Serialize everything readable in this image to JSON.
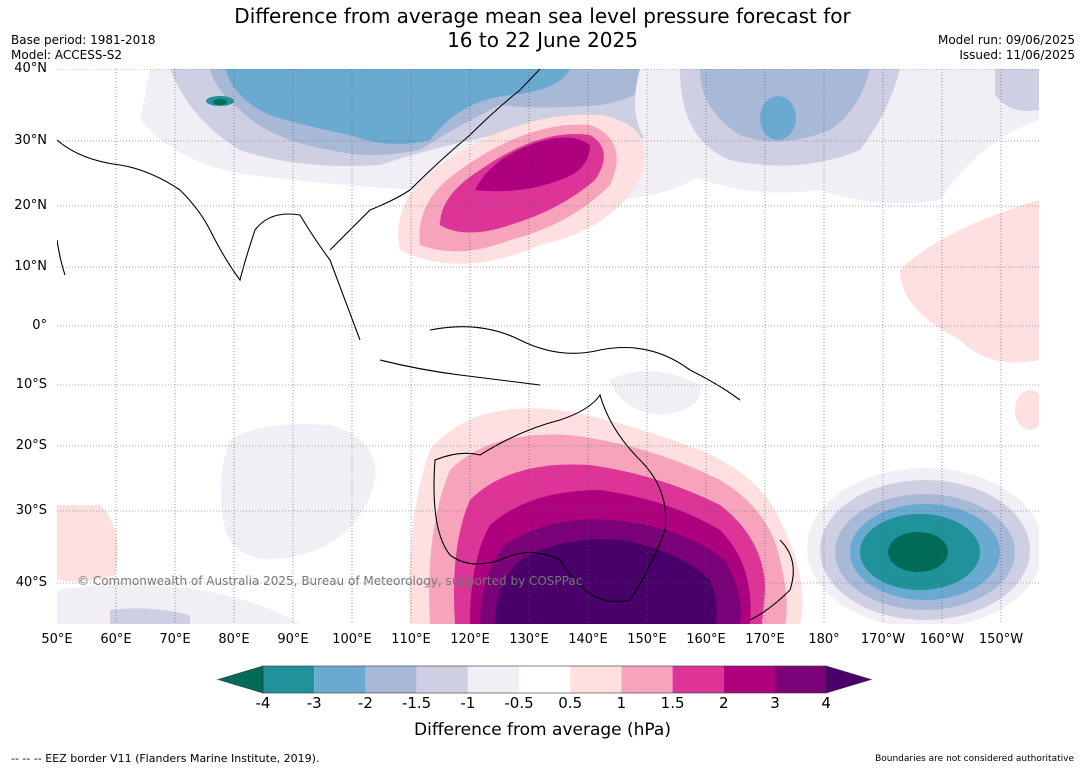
{
  "title_line1": "Difference from average mean sea level pressure forecast for",
  "title_line2": "16 to 22 June 2025",
  "base_period": "Base period: 1981-2018",
  "model": "Model: ACCESS-S2",
  "model_run": "Model run: 09/06/2025",
  "issued": "Issued: 11/06/2025",
  "copyright": "© Commonwealth of Australia 2025, Bureau of Meteorology, supported by COSPPac",
  "lat_labels": [
    "40°N",
    "30°N",
    "20°N",
    "10°N",
    "0°",
    "10°S",
    "20°S",
    "30°S",
    "40°S"
  ],
  "lon_labels": [
    "50°E",
    "60°E",
    "70°E",
    "80°E",
    "90°E",
    "100°E",
    "110°E",
    "120°E",
    "130°E",
    "140°E",
    "150°E",
    "160°E",
    "170°E",
    "180°",
    "170°W",
    "160°W",
    "150°W"
  ],
  "colorbar": {
    "label": "Difference from average (hPa)",
    "ticks": [
      "-4",
      "-3",
      "-2",
      "-1.5",
      "-1",
      "-0.5",
      "0.5",
      "1",
      "1.5",
      "2",
      "3",
      "4"
    ],
    "colors": [
      "#20929a",
      "#6aa9d0",
      "#a8b9d8",
      "#cfcfe3",
      "#f1eef5",
      "#ffffff",
      "#fde0df",
      "#f8a3bc",
      "#dd3497",
      "#ae017e",
      "#7a0177"
    ],
    "under_color": "#006b57",
    "over_color": "#49006a"
  },
  "footer_left": "-- -- -- EEZ border V11 (Flanders Marine Institute, 2019).",
  "footer_right": "Boundaries are not considered authoritative"
}
